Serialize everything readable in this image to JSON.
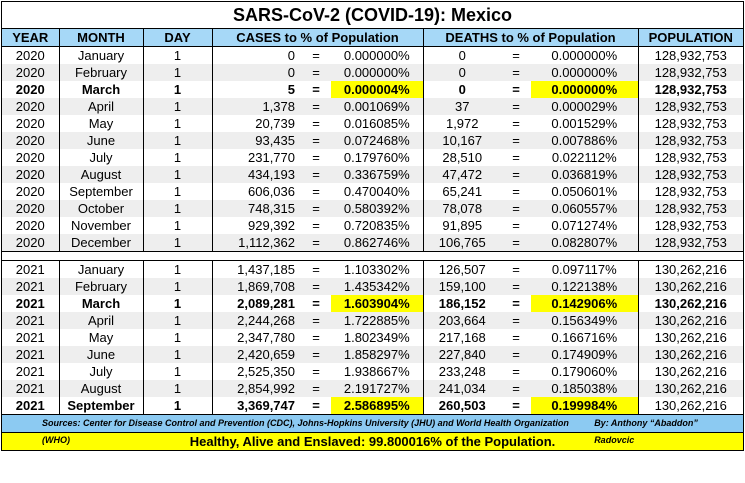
{
  "title": "SARS-CoV-2 (COVID-19): Mexico",
  "headers": {
    "year": "YEAR",
    "month": "MONTH",
    "day": "DAY",
    "cases": "CASES to % of Population",
    "deaths": "DEATHS to % of Population",
    "population": "POPULATION"
  },
  "eq": "=",
  "highlight_color": "#ffff00",
  "rows2020": [
    {
      "year": "2020",
      "month": "January",
      "day": "1",
      "cases": "0",
      "cases_pct": "0.000000%",
      "deaths": "0",
      "deaths_pct": "0.000000%",
      "population": "128,932,753"
    },
    {
      "year": "2020",
      "month": "February",
      "day": "1",
      "cases": "0",
      "cases_pct": "0.000000%",
      "deaths": "0",
      "deaths_pct": "0.000000%",
      "population": "128,932,753"
    },
    {
      "year": "2020",
      "month": "March",
      "day": "1",
      "cases": "5",
      "cases_pct": "0.000004%",
      "deaths": "0",
      "deaths_pct": "0.000000%",
      "population": "128,932,753",
      "bold": true
    },
    {
      "year": "2020",
      "month": "April",
      "day": "1",
      "cases": "1,378",
      "cases_pct": "0.001069%",
      "deaths": "37",
      "deaths_pct": "0.000029%",
      "population": "128,932,753"
    },
    {
      "year": "2020",
      "month": "May",
      "day": "1",
      "cases": "20,739",
      "cases_pct": "0.016085%",
      "deaths": "1,972",
      "deaths_pct": "0.001529%",
      "population": "128,932,753"
    },
    {
      "year": "2020",
      "month": "June",
      "day": "1",
      "cases": "93,435",
      "cases_pct": "0.072468%",
      "deaths": "10,167",
      "deaths_pct": "0.007886%",
      "population": "128,932,753"
    },
    {
      "year": "2020",
      "month": "July",
      "day": "1",
      "cases": "231,770",
      "cases_pct": "0.179760%",
      "deaths": "28,510",
      "deaths_pct": "0.022112%",
      "population": "128,932,753"
    },
    {
      "year": "2020",
      "month": "August",
      "day": "1",
      "cases": "434,193",
      "cases_pct": "0.336759%",
      "deaths": "47,472",
      "deaths_pct": "0.036819%",
      "population": "128,932,753"
    },
    {
      "year": "2020",
      "month": "September",
      "day": "1",
      "cases": "606,036",
      "cases_pct": "0.470040%",
      "deaths": "65,241",
      "deaths_pct": "0.050601%",
      "population": "128,932,753"
    },
    {
      "year": "2020",
      "month": "October",
      "day": "1",
      "cases": "748,315",
      "cases_pct": "0.580392%",
      "deaths": "78,078",
      "deaths_pct": "0.060557%",
      "population": "128,932,753"
    },
    {
      "year": "2020",
      "month": "November",
      "day": "1",
      "cases": "929,392",
      "cases_pct": "0.720835%",
      "deaths": "91,895",
      "deaths_pct": "0.071274%",
      "population": "128,932,753"
    },
    {
      "year": "2020",
      "month": "December",
      "day": "1",
      "cases": "1,112,362",
      "cases_pct": "0.862746%",
      "deaths": "106,765",
      "deaths_pct": "0.082807%",
      "population": "128,932,753"
    }
  ],
  "rows2021": [
    {
      "year": "2021",
      "month": "January",
      "day": "1",
      "cases": "1,437,185",
      "cases_pct": "1.103302%",
      "deaths": "126,507",
      "deaths_pct": "0.097117%",
      "population": "130,262,216"
    },
    {
      "year": "2021",
      "month": "February",
      "day": "1",
      "cases": "1,869,708",
      "cases_pct": "1.435342%",
      "deaths": "159,100",
      "deaths_pct": "0.122138%",
      "population": "130,262,216"
    },
    {
      "year": "2021",
      "month": "March",
      "day": "1",
      "cases": "2,089,281",
      "cases_pct": "1.603904%",
      "deaths": "186,152",
      "deaths_pct": "0.142906%",
      "population": "130,262,216",
      "bold": true
    },
    {
      "year": "2021",
      "month": "April",
      "day": "1",
      "cases": "2,244,268",
      "cases_pct": "1.722885%",
      "deaths": "203,664",
      "deaths_pct": "0.156349%",
      "population": "130,262,216"
    },
    {
      "year": "2021",
      "month": "May",
      "day": "1",
      "cases": "2,347,780",
      "cases_pct": "1.802349%",
      "deaths": "217,168",
      "deaths_pct": "0.166716%",
      "population": "130,262,216"
    },
    {
      "year": "2021",
      "month": "June",
      "day": "1",
      "cases": "2,420,659",
      "cases_pct": "1.858297%",
      "deaths": "227,840",
      "deaths_pct": "0.174909%",
      "population": "130,262,216"
    },
    {
      "year": "2021",
      "month": "July",
      "day": "1",
      "cases": "2,525,350",
      "cases_pct": "1.938667%",
      "deaths": "233,248",
      "deaths_pct": "0.179060%",
      "population": "130,262,216"
    },
    {
      "year": "2021",
      "month": "August",
      "day": "1",
      "cases": "2,854,992",
      "cases_pct": "2.191727%",
      "deaths": "241,034",
      "deaths_pct": "0.185038%",
      "population": "130,262,216"
    },
    {
      "year": "2021",
      "month": "September",
      "day": "1",
      "cases": "3,369,747",
      "cases_pct": "2.586895%",
      "deaths": "260,503",
      "deaths_pct": "0.199984%",
      "population": "130,262,216",
      "bold": true
    }
  ],
  "sources": "Sources: Center for Disease Control and Prevention (CDC),  Johns-Hopkins University (JHU) and World Health Organization (WHO)",
  "author": "By: Anthony “Abaddon” Radovcic",
  "footer": "Healthy, Alive and Enslaved: 99.800016% of the Population."
}
